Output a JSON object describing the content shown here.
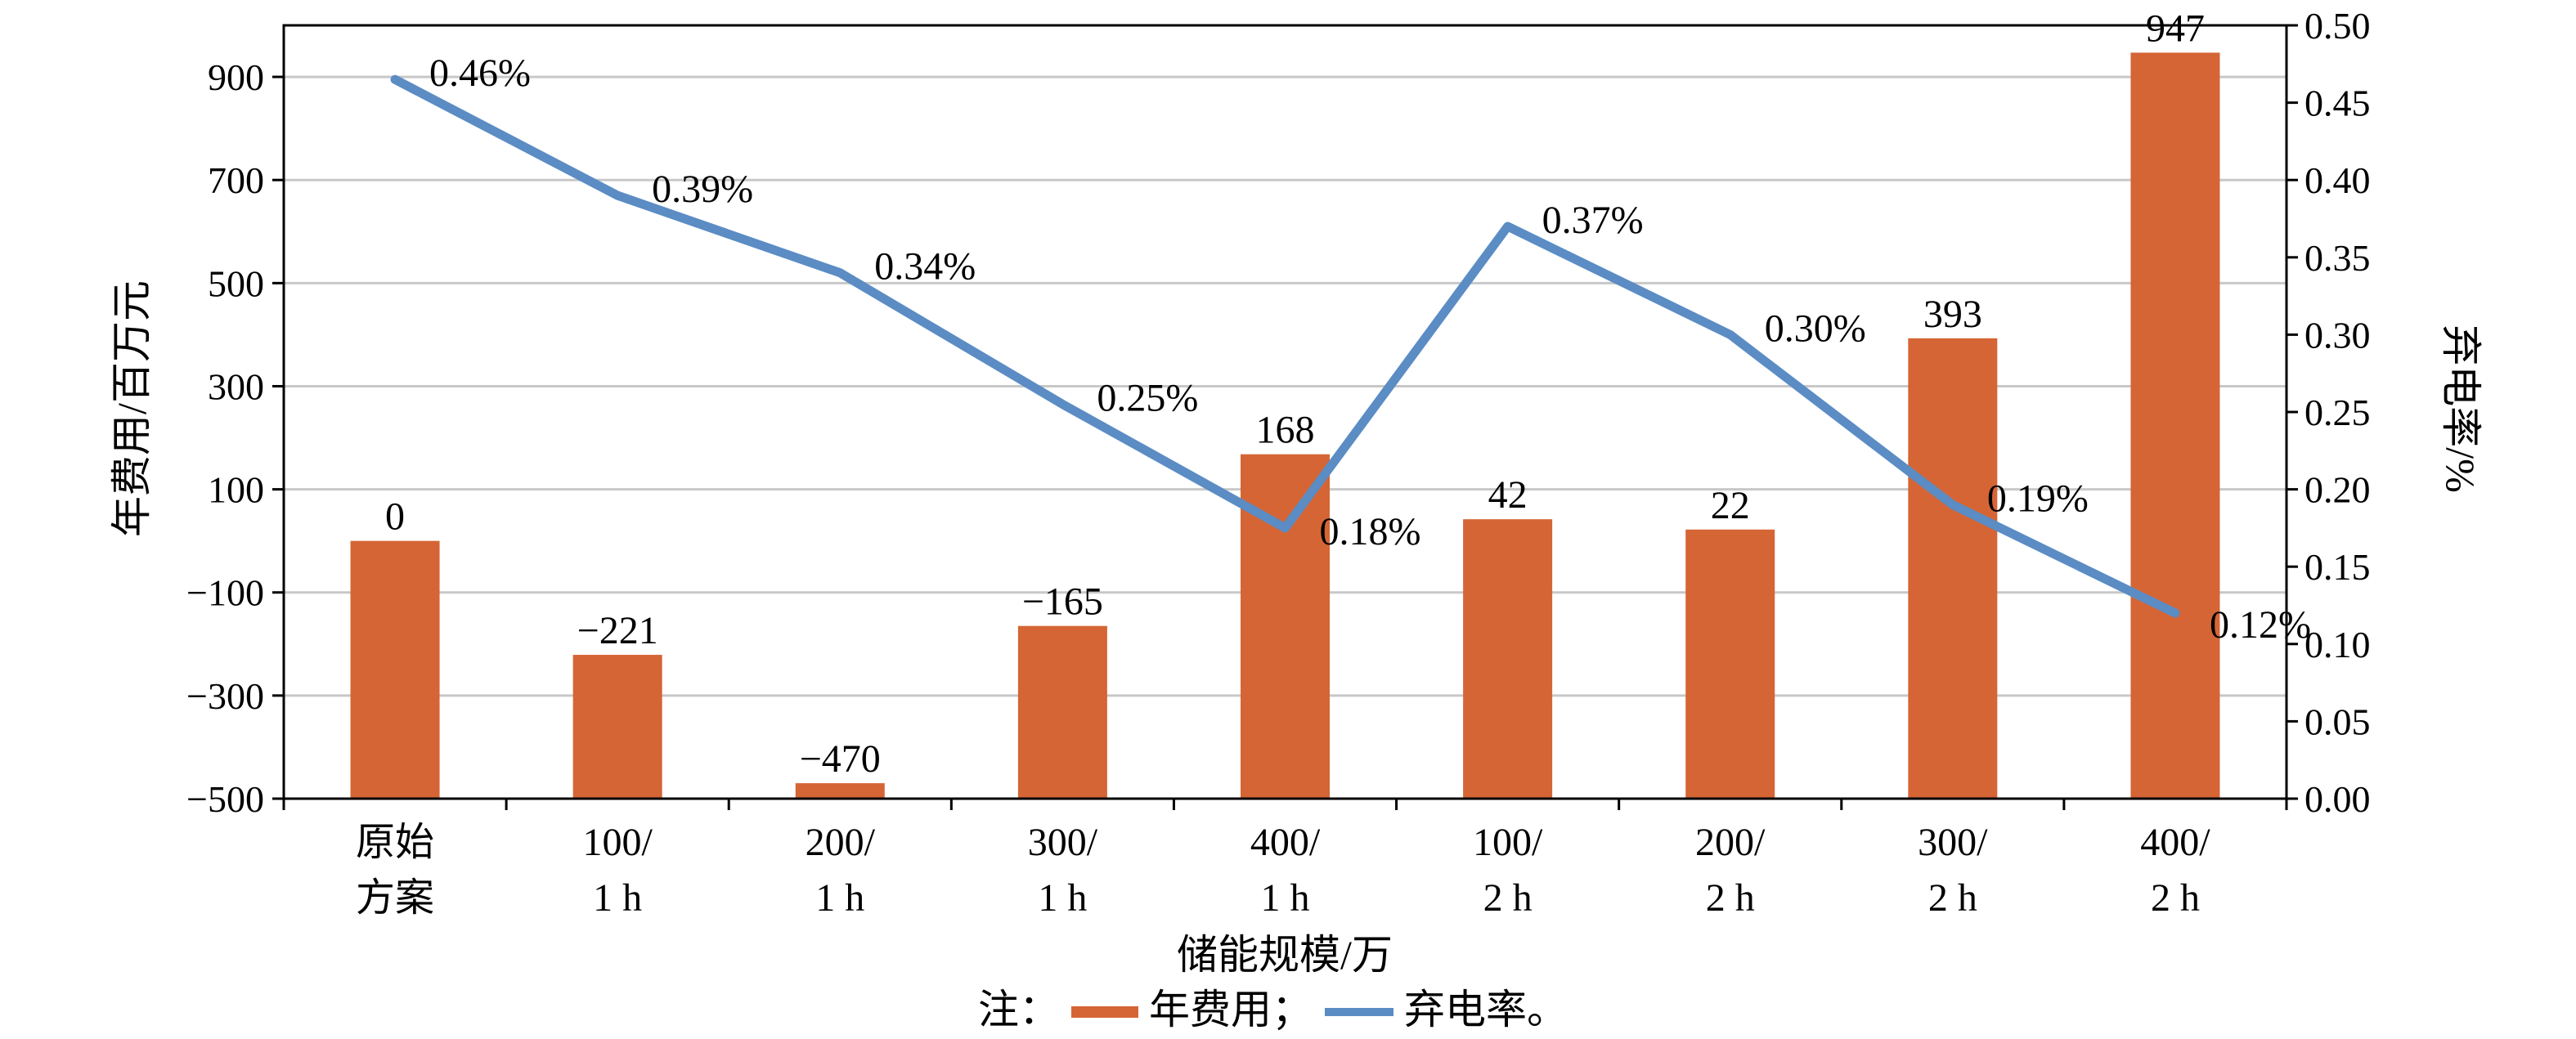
{
  "chart_data": {
    "type": "bar+line",
    "categories": [
      [
        "原始",
        "方案"
      ],
      [
        "100/",
        "1 h"
      ],
      [
        "200/",
        "1 h"
      ],
      [
        "300/",
        "1 h"
      ],
      [
        "400/",
        "1 h"
      ],
      [
        "100/",
        "2 h"
      ],
      [
        "200/",
        "2 h"
      ],
      [
        "300/",
        "2 h"
      ],
      [
        "400/",
        "2 h"
      ]
    ],
    "series": [
      {
        "name": "年费用",
        "kind": "bar",
        "axis": "left",
        "color": "#D56535",
        "values": [
          0,
          -221,
          -470,
          -165,
          168,
          42,
          22,
          393,
          947
        ],
        "labels": [
          "0",
          "−221",
          "−470",
          "−165",
          "168",
          "42",
          "22",
          "393",
          "947"
        ]
      },
      {
        "name": "弃电率",
        "kind": "line",
        "axis": "right",
        "color": "#5B8CC4",
        "values": [
          0.465,
          0.39,
          0.34,
          0.255,
          0.175,
          0.37,
          0.3,
          0.19,
          0.12
        ],
        "labels": [
          "0.46%",
          "0.39%",
          "0.34%",
          "0.25%",
          "0.18%",
          "0.37%",
          "0.30%",
          "0.19%",
          "0.12%"
        ]
      }
    ],
    "left_axis": {
      "label": "年费用/百万元",
      "range": [
        -500,
        1000
      ],
      "ticks": [
        "900",
        "700",
        "500",
        "300",
        "100",
        "−100",
        "−300",
        "−500"
      ],
      "tick_values": [
        900,
        700,
        500,
        300,
        100,
        -100,
        -300,
        -500
      ]
    },
    "right_axis": {
      "label": "弃电率/%",
      "range": [
        0,
        0.5
      ],
      "ticks": [
        "0.50",
        "0.45",
        "0.40",
        "0.35",
        "0.30",
        "0.25",
        "0.20",
        "0.15",
        "0.10",
        "0.05",
        "0.00"
      ],
      "tick_values": [
        0.5,
        0.45,
        0.4,
        0.35,
        0.3,
        0.25,
        0.2,
        0.15,
        0.1,
        0.05,
        0
      ]
    },
    "xlabel": "储能规模/万",
    "grid": true,
    "legend": {
      "prefix": "注：",
      "items": [
        "年费用；",
        "弃电率。"
      ],
      "placement": "bottom"
    }
  }
}
